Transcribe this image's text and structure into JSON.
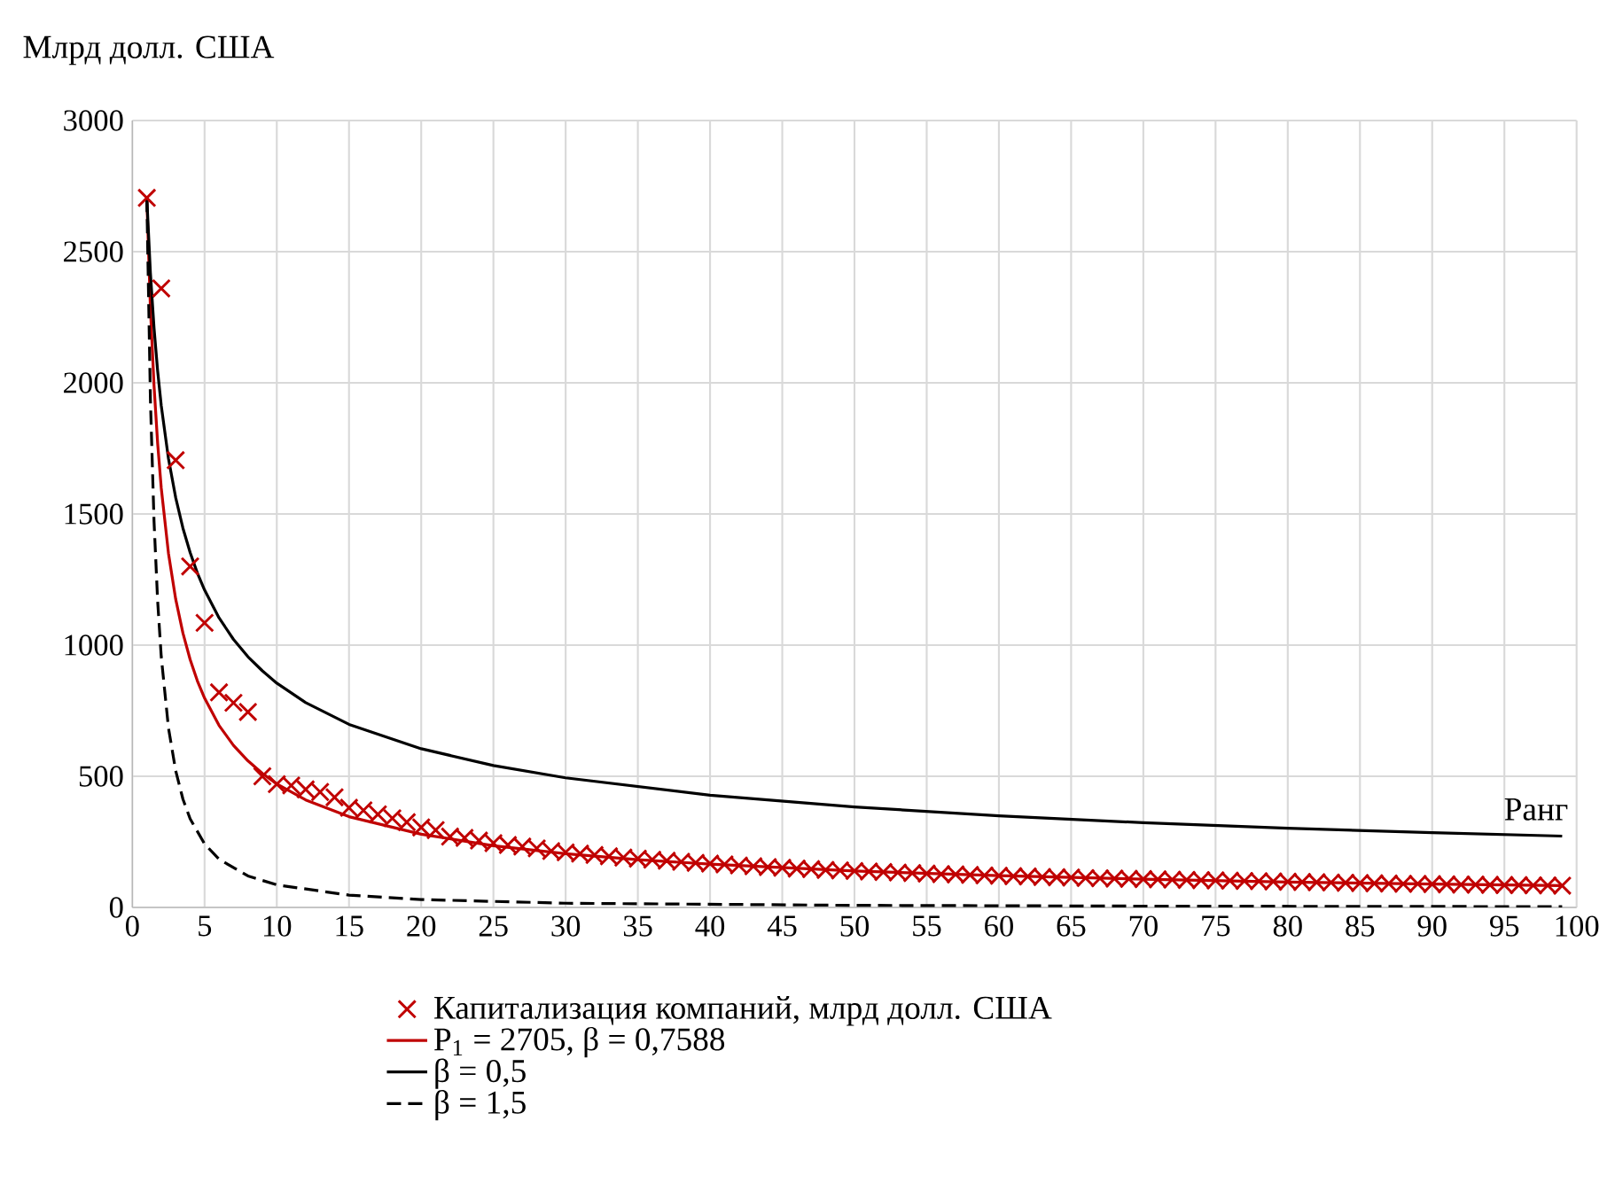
{
  "chart_data": {
    "type": "line",
    "xlabel": "Ранг",
    "ylabel": "Млрд долл. США",
    "xlim": [
      0,
      100
    ],
    "ylim": [
      0,
      3000
    ],
    "xticks": [
      0,
      5,
      10,
      15,
      20,
      25,
      30,
      35,
      40,
      45,
      50,
      55,
      60,
      65,
      70,
      75,
      80,
      85,
      90,
      95,
      100
    ],
    "yticks": [
      0,
      500,
      1000,
      1500,
      2000,
      2500,
      3000
    ],
    "grid": true,
    "legend": "bottom",
    "series": [
      {
        "name": "Капитализация компаний, млрд долл. США",
        "type": "scatter",
        "marker": "cross",
        "color": "#c00000",
        "x": [
          1,
          2,
          3,
          4,
          5,
          6,
          7,
          8,
          9,
          10,
          11,
          12,
          13,
          14,
          15,
          16,
          17,
          18,
          19,
          20,
          21,
          22,
          23,
          24,
          25,
          26,
          27,
          28,
          29,
          30,
          31,
          32,
          33,
          34,
          35,
          36,
          37,
          38,
          39,
          40,
          41,
          42,
          43,
          44,
          45,
          46,
          47,
          48,
          49,
          50,
          51,
          52,
          53,
          54,
          55,
          56,
          57,
          58,
          59,
          60,
          61,
          62,
          63,
          64,
          65,
          66,
          67,
          68,
          69,
          70,
          71,
          72,
          73,
          74,
          75,
          76,
          77,
          78,
          79,
          80,
          81,
          82,
          83,
          84,
          85,
          86,
          87,
          88,
          89,
          90,
          91,
          92,
          93,
          94,
          95,
          96,
          97,
          98,
          99
        ],
        "values": [
          2705,
          2360,
          1705,
          1300,
          1085,
          820,
          780,
          745,
          500,
          470,
          465,
          450,
          440,
          420,
          380,
          370,
          355,
          340,
          325,
          305,
          295,
          270,
          265,
          255,
          245,
          238,
          232,
          225,
          215,
          210,
          205,
          200,
          195,
          190,
          186,
          182,
          178,
          174,
          170,
          167,
          164,
          160,
          157,
          154,
          151,
          148,
          146,
          143,
          141,
          139,
          137,
          135,
          133,
          131,
          129,
          127,
          126,
          124,
          122,
          121,
          119,
          118,
          116,
          115,
          114,
          112,
          111,
          110,
          109,
          108,
          107,
          106,
          105,
          104,
          103,
          102,
          101,
          100,
          99,
          98,
          97,
          96,
          95,
          94,
          93,
          92,
          91,
          90,
          90,
          89,
          88,
          87,
          87,
          86,
          85,
          85,
          84,
          84,
          83
        ]
      },
      {
        "name": "P$_{1}$ =  2705,  β = 0,7588",
        "type": "line",
        "marker": "none",
        "line_style": "solid",
        "color": "#c00000",
        "x": [
          1,
          1.25,
          1.5,
          1.75,
          2,
          2.5,
          3,
          3.5,
          4,
          4.5,
          5,
          6,
          7,
          8,
          9,
          10,
          12,
          15,
          20,
          25,
          30,
          35,
          40,
          50,
          60,
          70,
          80,
          90,
          99
        ],
        "values": [
          2705,
          2284,
          1989,
          1769,
          1599,
          1350,
          1175,
          1046,
          945,
          864,
          798,
          694,
          618,
          559,
          511,
          471,
          410,
          346,
          279,
          235,
          205,
          182,
          165,
          139,
          121,
          108,
          97,
          89,
          83
        ]
      },
      {
        "name": "β = 0,5",
        "type": "line",
        "marker": "none",
        "line_style": "solid",
        "color": "#000000",
        "x": [
          1,
          1.25,
          1.5,
          1.75,
          2,
          2.5,
          3,
          3.5,
          4,
          4.5,
          5,
          6,
          7,
          8,
          9,
          10,
          12,
          15,
          20,
          25,
          30,
          40,
          50,
          60,
          70,
          80,
          90,
          99
        ],
        "values": [
          2705,
          2419,
          2209,
          2045,
          1913,
          1711,
          1562,
          1446,
          1353,
          1275,
          1210,
          1104,
          1022,
          956,
          902,
          855,
          781,
          698,
          605,
          541,
          494,
          428,
          383,
          349,
          323,
          302,
          285,
          272
        ]
      },
      {
        "name": "β = 1,5",
        "type": "line",
        "marker": "none",
        "line_style": "dashed",
        "color": "#000000",
        "x": [
          1,
          1.25,
          1.5,
          1.75,
          2,
          2.5,
          3,
          3.5,
          4,
          5,
          6,
          8,
          10,
          15,
          20,
          30,
          50,
          70,
          99
        ],
        "values": [
          2705,
          1935,
          1472,
          1168,
          956,
          684,
          521,
          413,
          338,
          242,
          184,
          120,
          86,
          47,
          30,
          16,
          8,
          5,
          3
        ]
      }
    ]
  }
}
